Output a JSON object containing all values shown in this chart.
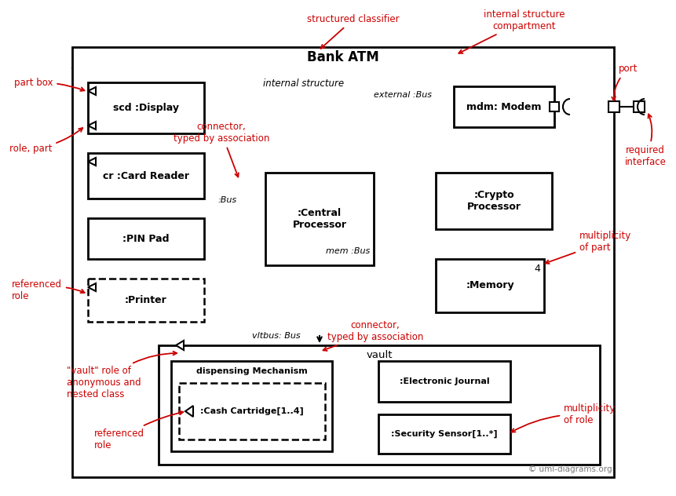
{
  "bg_color": "#ffffff",
  "line_color": "#000000",
  "red_color": "#cc0000",
  "gray_color": "#777777",
  "fig_width": 8.61,
  "fig_height": 6.32,
  "title": "Bank ATM",
  "copyright": "© uml-diagrams.org",
  "outer": [
    92,
    60,
    690,
    548
  ],
  "disp": [
    112,
    105,
    148,
    65
  ],
  "cr": [
    112,
    195,
    148,
    58
  ],
  "pin": [
    112,
    278,
    148,
    52
  ],
  "prt": [
    112,
    355,
    148,
    55
  ],
  "cp": [
    338,
    220,
    138,
    118
  ],
  "cry": [
    555,
    220,
    148,
    72
  ],
  "mdm": [
    578,
    110,
    128,
    52
  ],
  "mem": [
    555,
    330,
    138,
    68
  ],
  "vlt": [
    202,
    440,
    562,
    152
  ],
  "dm": [
    218,
    460,
    205,
    115
  ],
  "cc": [
    228,
    488,
    186,
    72
  ],
  "ej": [
    482,
    460,
    168,
    52
  ],
  "ss": [
    482,
    528,
    168,
    50
  ]
}
